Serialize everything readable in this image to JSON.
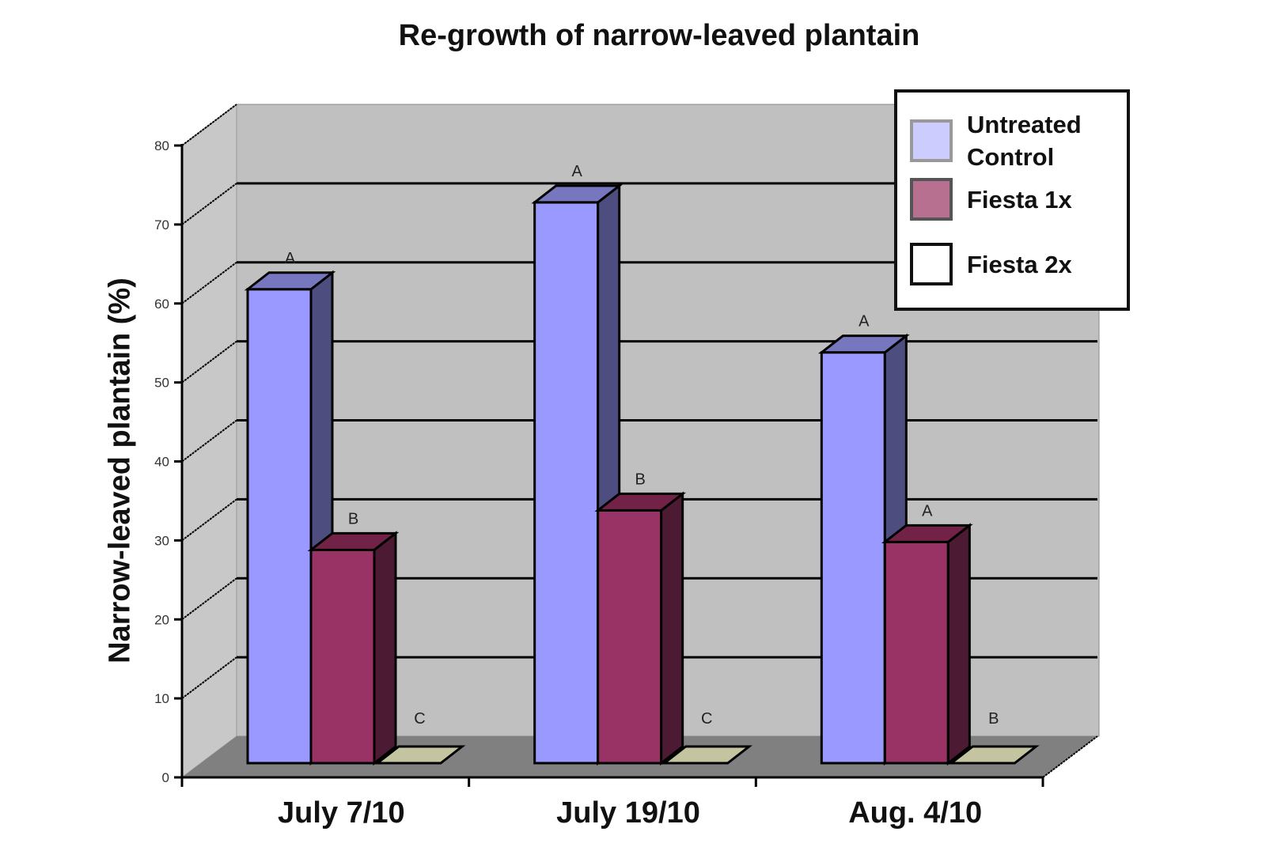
{
  "chart_data": {
    "type": "bar",
    "style": "3d-clustered",
    "title": "Re-growth of narrow-leaved plantain",
    "xlabel": "",
    "ylabel": "Narrow-leaved plantain (%)",
    "ylim": [
      0,
      80
    ],
    "yticks": [
      "0",
      "10",
      "20",
      "30",
      "40",
      "50",
      "60",
      "70",
      "80"
    ],
    "grid": true,
    "legend_position": "top-right",
    "categories": [
      "July 7/10",
      "July 19/10",
      "Aug. 4/10"
    ],
    "series": [
      {
        "name": "Untreated Control",
        "values": [
          60,
          71,
          52
        ],
        "letters": [
          "A",
          "A",
          "A"
        ],
        "color": "#9999FF",
        "side_color": "#4D4D80",
        "top_color": "#7777C0",
        "legend_color": "#CCCCFF",
        "legend_border": "#999999"
      },
      {
        "name": "Fiesta 1x",
        "values": [
          27,
          32,
          28
        ],
        "letters": [
          "B",
          "B",
          "A"
        ],
        "color": "#993366",
        "side_color": "#4D1A33",
        "top_color": "#732247",
        "legend_color": "#B87090",
        "legend_border": "#555555"
      },
      {
        "name": "Fiesta 2x",
        "values": [
          0,
          0,
          0
        ],
        "letters": [
          "C",
          "C",
          "B"
        ],
        "color": "#FFFFFF",
        "side_color": "#808060",
        "top_color": "#C4C4A0",
        "legend_color": "#FFFFFF",
        "legend_border": "#111111"
      }
    ],
    "legend_labels": [
      "Untreated Control",
      "Fiesta 1x",
      "Fiesta 2x"
    ],
    "wall_color": "#C0C0C0",
    "floor_color": "#808080"
  }
}
